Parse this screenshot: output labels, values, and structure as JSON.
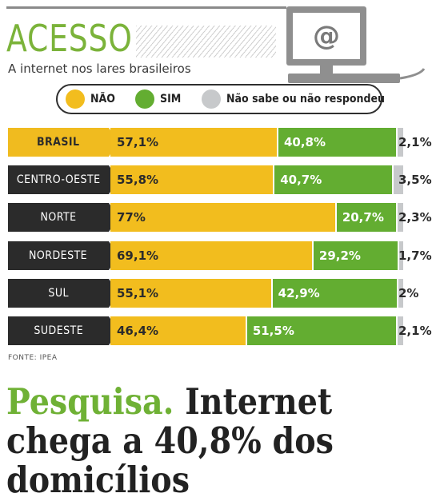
{
  "header": {
    "title": "ACESSO",
    "subtitle": "A internet nos lares brasileiros",
    "monitor_symbol": "@"
  },
  "legend": [
    {
      "label": "NÃO",
      "color": "#f2bd1e"
    },
    {
      "label": "SIM",
      "color": "#63ad31"
    },
    {
      "label": "Não sabe ou não respondeu",
      "color": "#c7c9cb"
    }
  ],
  "chart_data": {
    "type": "bar",
    "orientation": "horizontal",
    "stacked": true,
    "categories": [
      "BRASIL",
      "CENTRO-OESTE",
      "NORTE",
      "NORDESTE",
      "SUL",
      "SUDESTE"
    ],
    "highlight_category": "BRASIL",
    "series": [
      {
        "name": "NÃO",
        "values": [
          57.1,
          55.8,
          77,
          69.1,
          55.1,
          46.4
        ],
        "labels": [
          "57,1%",
          "55,8%",
          "77%",
          "69,1%",
          "55,1%",
          "46,4%"
        ],
        "color": "#f2bd1e"
      },
      {
        "name": "SIM",
        "values": [
          40.8,
          40.7,
          20.7,
          29.2,
          42.9,
          51.5
        ],
        "labels": [
          "40,8%",
          "40,7%",
          "20,7%",
          "29,2%",
          "42,9%",
          "51,5%"
        ],
        "color": "#63ad31"
      },
      {
        "name": "Não sabe ou não respondeu",
        "values": [
          2.1,
          3.5,
          2.3,
          1.7,
          2,
          2.1
        ],
        "labels": [
          "2,1%",
          "3,5%",
          "2,3%",
          "1,7%",
          "2%",
          "2,1%"
        ],
        "color": "#c7c9cb"
      }
    ],
    "xlim": [
      0,
      100
    ],
    "unit": "%"
  },
  "source": "FONTE: IPEA",
  "headline": {
    "lead": "Pesquisa.",
    "text": " Internet chega a 40,8% dos domicílios"
  }
}
